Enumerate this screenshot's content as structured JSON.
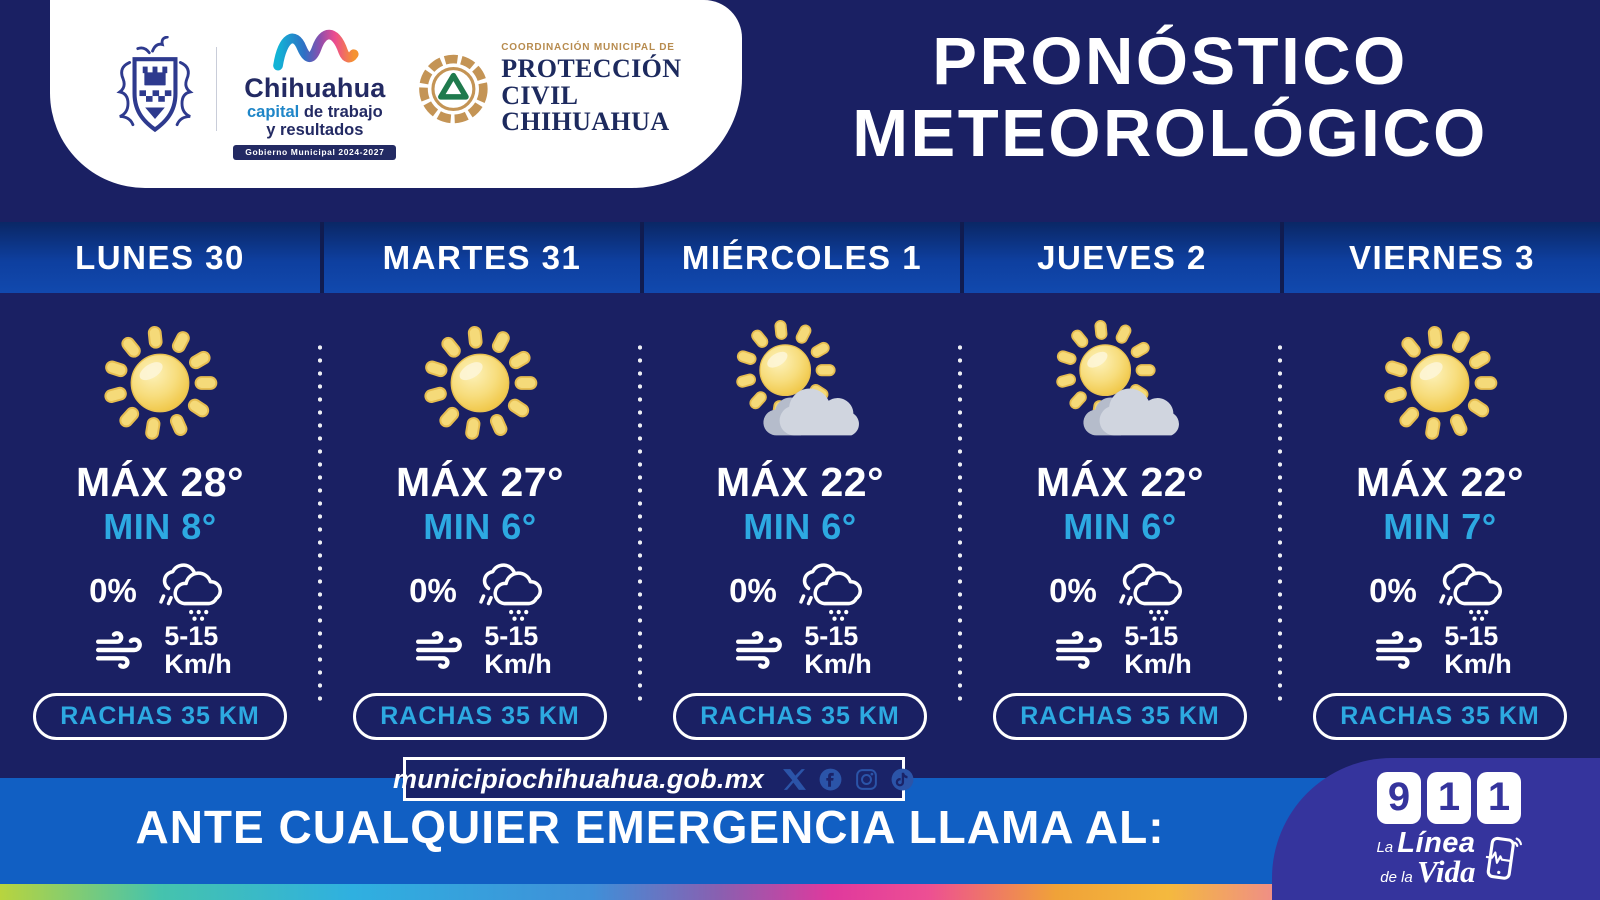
{
  "brand": {
    "crest": "escudo-municipio-chihuahua",
    "chihuahua_logo": {
      "name": "Chihuahua",
      "tagline_bold": "capital",
      "tagline_rest": " de trabajo",
      "tagline_line2": "y resultados",
      "banner": "Gobierno Municipal 2024-2027"
    },
    "proteccion_civil": {
      "kicker": "COORDINACIÓN MUNICIPAL DE",
      "title": "PROTECCIÓN CIVIL",
      "subtitle": "CHIHUAHUA"
    }
  },
  "title": {
    "line1": "PRONÓSTICO",
    "line2": "METEOROLÓGICO"
  },
  "forecast": {
    "days": [
      {
        "label": "LUNES 30",
        "icon": "sunny",
        "max": "MÁX 28°",
        "min": "MIN 8°",
        "precip": "0%",
        "wind_speed": "5-15",
        "wind_unit": "Km/h",
        "gusts": "RACHAS 35 KM"
      },
      {
        "label": "MARTES 31",
        "icon": "sunny",
        "max": "MÁX 27°",
        "min": "MIN 6°",
        "precip": "0%",
        "wind_speed": "5-15",
        "wind_unit": "Km/h",
        "gusts": "RACHAS 35 KM"
      },
      {
        "label": "MIÉRCOLES 1",
        "icon": "partly",
        "max": "MÁX 22°",
        "min": "MIN 6°",
        "precip": "0%",
        "wind_speed": "5-15",
        "wind_unit": "Km/h",
        "gusts": "RACHAS 35 KM"
      },
      {
        "label": "JUEVES 2",
        "icon": "partly",
        "max": "MÁX 22°",
        "min": "MIN 6°",
        "precip": "0%",
        "wind_speed": "5-15",
        "wind_unit": "Km/h",
        "gusts": "RACHAS 35 KM"
      },
      {
        "label": "VIERNES 3",
        "icon": "sunny",
        "max": "MÁX 22°",
        "min": "MIN 7°",
        "precip": "0%",
        "wind_speed": "5-15",
        "wind_unit": "Km/h",
        "gusts": "RACHAS 35 KM"
      }
    ]
  },
  "footer": {
    "website": "municipiochihuahua.gob.mx",
    "social_icons": [
      "x-icon",
      "facebook-icon",
      "instagram-icon",
      "tiktok-icon"
    ],
    "emergency_text": "ANTE CUALQUIER EMERGENCIA LLAMA AL:",
    "nine_one_one": [
      "9",
      "1",
      "1"
    ],
    "lifeline": {
      "la": "La",
      "linea": "Línea",
      "de_la": "de la",
      "vida": "Vida"
    }
  },
  "colors": {
    "background_navy": "#1a2063",
    "band_blue": "#0e3f9f",
    "accent_cyan": "#2da9e1",
    "emergency_blue": "#115fc3",
    "blob_indigo": "#35349d",
    "pc_bronze": "#c49455",
    "pc_green": "#1f7a4d"
  }
}
